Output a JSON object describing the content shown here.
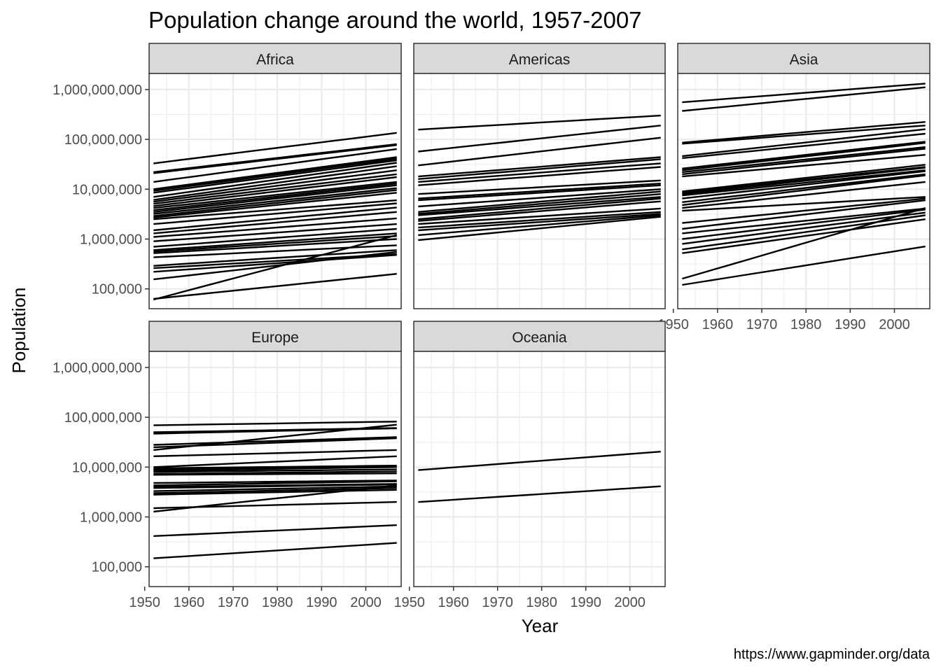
{
  "chart_data": {
    "type": "line",
    "title": "Population change around the world, 1957-2007",
    "xlabel": "Year",
    "ylabel": "Population",
    "caption": "https://www.gapminder.org/data",
    "x_scale": "linear",
    "y_scale": "log10",
    "xlim": [
      1951,
      2008
    ],
    "ylim": [
      40000,
      2100000000
    ],
    "x_ticks": [
      1950,
      1960,
      1970,
      1980,
      1990,
      2000
    ],
    "x_tick_labels": [
      "1950",
      "1960",
      "1970",
      "1980",
      "1990",
      "2000"
    ],
    "y_ticks": [
      100000,
      1000000,
      10000000,
      100000000,
      1000000000
    ],
    "y_tick_labels": [
      "100,000",
      "1,000,000",
      "10,000,000",
      "100,000,000",
      "1,000,000,000"
    ],
    "grid": true,
    "line_color": "#000000",
    "years": [
      1952,
      1957,
      1962,
      1967,
      1972,
      1977,
      1982,
      1987,
      1992,
      1997,
      2002,
      2007
    ],
    "facets": [
      {
        "label": "Africa",
        "series": [
          {
            "start": 33000000,
            "end": 135000000
          },
          {
            "start": 22000000,
            "end": 80000000
          },
          {
            "start": 21000000,
            "end": 77000000
          },
          {
            "start": 14000000,
            "end": 64000000
          },
          {
            "start": 10000000,
            "end": 44000000
          },
          {
            "start": 9300000,
            "end": 41000000
          },
          {
            "start": 8500000,
            "end": 38000000
          },
          {
            "start": 7000000,
            "end": 34000000
          },
          {
            "start": 6100000,
            "end": 29000000
          },
          {
            "start": 5600000,
            "end": 24000000
          },
          {
            "start": 5100000,
            "end": 20000000
          },
          {
            "start": 4600000,
            "end": 17500000
          },
          {
            "start": 4200000,
            "end": 14000000
          },
          {
            "start": 3800000,
            "end": 13000000
          },
          {
            "start": 3500000,
            "end": 12000000
          },
          {
            "start": 3200000,
            "end": 10500000
          },
          {
            "start": 2900000,
            "end": 9600000
          },
          {
            "start": 2700000,
            "end": 8500000
          },
          {
            "start": 2500000,
            "end": 6000000
          },
          {
            "start": 2000000,
            "end": 5200000
          },
          {
            "start": 1500000,
            "end": 4300000
          },
          {
            "start": 1300000,
            "end": 3500000
          },
          {
            "start": 1100000,
            "end": 2600000
          },
          {
            "start": 900000,
            "end": 2000000
          },
          {
            "start": 700000,
            "end": 1600000
          },
          {
            "start": 600000,
            "end": 1300000
          },
          {
            "start": 560000,
            "end": 1150000
          },
          {
            "start": 520000,
            "end": 1000000
          },
          {
            "start": 430000,
            "end": 750000
          },
          {
            "start": 290000,
            "end": 600000
          },
          {
            "start": 260000,
            "end": 500000
          },
          {
            "start": 220000,
            "end": 480000
          },
          {
            "start": 155000,
            "end": 550000
          },
          {
            "start": 63000,
            "end": 200000
          },
          {
            "start": 61000,
            "end": 1200000
          }
        ]
      },
      {
        "label": "Americas",
        "series": [
          {
            "start": 157000000,
            "end": 301000000
          },
          {
            "start": 57000000,
            "end": 190000000
          },
          {
            "start": 30000000,
            "end": 108000000
          },
          {
            "start": 18000000,
            "end": 44000000
          },
          {
            "start": 16000000,
            "end": 40000000
          },
          {
            "start": 14000000,
            "end": 33000000
          },
          {
            "start": 12000000,
            "end": 28000000
          },
          {
            "start": 8000000,
            "end": 15000000
          },
          {
            "start": 6500000,
            "end": 13000000
          },
          {
            "start": 6000000,
            "end": 12000000
          },
          {
            "start": 4500000,
            "end": 10000000
          },
          {
            "start": 3500000,
            "end": 9000000
          },
          {
            "start": 3200000,
            "end": 8000000
          },
          {
            "start": 3000000,
            "end": 7000000
          },
          {
            "start": 2500000,
            "end": 6500000
          },
          {
            "start": 2300000,
            "end": 5700000
          },
          {
            "start": 2000000,
            "end": 4100000
          },
          {
            "start": 1700000,
            "end": 3500000
          },
          {
            "start": 1500000,
            "end": 3200000
          },
          {
            "start": 1200000,
            "end": 3000000
          },
          {
            "start": 950000,
            "end": 2800000
          }
        ]
      },
      {
        "label": "Asia",
        "series": [
          {
            "start": 556000000,
            "end": 1320000000
          },
          {
            "start": 372000000,
            "end": 1110000000
          },
          {
            "start": 86000000,
            "end": 224000000
          },
          {
            "start": 82000000,
            "end": 190000000
          },
          {
            "start": 46000000,
            "end": 160000000
          },
          {
            "start": 42000000,
            "end": 130000000
          },
          {
            "start": 26000000,
            "end": 90000000
          },
          {
            "start": 24000000,
            "end": 85000000
          },
          {
            "start": 22000000,
            "end": 70000000
          },
          {
            "start": 20000000,
            "end": 65000000
          },
          {
            "start": 18000000,
            "end": 49000000
          },
          {
            "start": 9000000,
            "end": 31000000
          },
          {
            "start": 8500000,
            "end": 28000000
          },
          {
            "start": 8000000,
            "end": 27000000
          },
          {
            "start": 7500000,
            "end": 24000000
          },
          {
            "start": 6500000,
            "end": 23000000
          },
          {
            "start": 5500000,
            "end": 20000000
          },
          {
            "start": 4800000,
            "end": 19000000
          },
          {
            "start": 4200000,
            "end": 14000000
          },
          {
            "start": 3700000,
            "end": 7000000
          },
          {
            "start": 2100000,
            "end": 6500000
          },
          {
            "start": 1600000,
            "end": 6000000
          },
          {
            "start": 1300000,
            "end": 4100000
          },
          {
            "start": 1000000,
            "end": 3900000
          },
          {
            "start": 800000,
            "end": 3400000
          },
          {
            "start": 620000,
            "end": 3000000
          },
          {
            "start": 520000,
            "end": 2500000
          },
          {
            "start": 160000,
            "end": 4200000
          },
          {
            "start": 120000,
            "end": 710000
          }
        ]
      },
      {
        "label": "Europe",
        "series": [
          {
            "start": 69000000,
            "end": 82000000
          },
          {
            "start": 50000000,
            "end": 61000000
          },
          {
            "start": 47000000,
            "end": 60000000
          },
          {
            "start": 28000000,
            "end": 40000000
          },
          {
            "start": 25000000,
            "end": 38000000
          },
          {
            "start": 22000000,
            "end": 71000000
          },
          {
            "start": 16500000,
            "end": 22000000
          },
          {
            "start": 10000000,
            "end": 16500000
          },
          {
            "start": 9500000,
            "end": 10700000
          },
          {
            "start": 9000000,
            "end": 10200000
          },
          {
            "start": 8500000,
            "end": 10000000
          },
          {
            "start": 8000000,
            "end": 9000000
          },
          {
            "start": 7300000,
            "end": 8200000
          },
          {
            "start": 7000000,
            "end": 7500000
          },
          {
            "start": 4800000,
            "end": 5400000
          },
          {
            "start": 4300000,
            "end": 5200000
          },
          {
            "start": 4000000,
            "end": 4600000
          },
          {
            "start": 3800000,
            "end": 4500000
          },
          {
            "start": 3300000,
            "end": 4100000
          },
          {
            "start": 3000000,
            "end": 3800000
          },
          {
            "start": 2800000,
            "end": 3500000
          },
          {
            "start": 1500000,
            "end": 2000000
          },
          {
            "start": 1280000,
            "end": 4300000
          },
          {
            "start": 413000,
            "end": 685000
          },
          {
            "start": 148000,
            "end": 301000
          }
        ]
      },
      {
        "label": "Oceania",
        "series": [
          {
            "start": 8690000,
            "end": 20430000
          },
          {
            "start": 1990000,
            "end": 4120000
          }
        ]
      }
    ]
  }
}
